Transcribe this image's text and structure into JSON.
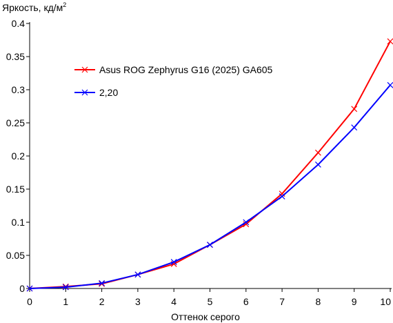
{
  "chart_data": {
    "type": "line",
    "ylabel": "Яркость, кд/м",
    "ylabel_superscript": "2",
    "xlabel": "Оттенок серого",
    "xlim": [
      0,
      10
    ],
    "ylim": [
      0,
      0.4
    ],
    "x_ticks": [
      "0",
      "1",
      "2",
      "3",
      "4",
      "5",
      "6",
      "7",
      "8",
      "9",
      "10"
    ],
    "y_ticks": [
      "0",
      "0.05",
      "0.1",
      "0.15",
      "0.2",
      "0.25",
      "0.3",
      "0.35",
      "0.4"
    ],
    "grid": false,
    "legend_position": "upper-left",
    "x": [
      0,
      1,
      2,
      3,
      4,
      5,
      6,
      7,
      8,
      9,
      10
    ],
    "series": [
      {
        "name": "Asus ROG Zephyrus G16 (2025) GA605",
        "color": "#ff0000",
        "marker": "x",
        "values": [
          0.0,
          0.003,
          0.007,
          0.021,
          0.037,
          0.066,
          0.097,
          0.143,
          0.205,
          0.271,
          0.373
        ]
      },
      {
        "name": "2,20",
        "color": "#0000ff",
        "marker": "x",
        "values": [
          0.0,
          0.002,
          0.008,
          0.021,
          0.04,
          0.066,
          0.1,
          0.139,
          0.187,
          0.243,
          0.307
        ]
      }
    ]
  }
}
